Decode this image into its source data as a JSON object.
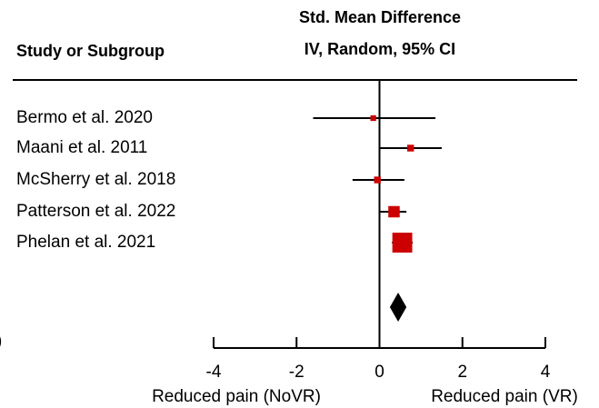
{
  "chart_data": {
    "type": "forest",
    "column_header": "Study or Subgroup",
    "title": "Std. Mean Difference",
    "subtitle": "IV, Random, 95% CI",
    "categories": [
      "Bermo et al. 2020",
      "Maani et al. 2011",
      "McSherry et al. 2018",
      "Patterson et al. 2022",
      "Phelan et al. 2021"
    ],
    "values": [
      -0.15,
      0.75,
      -0.05,
      0.35,
      0.55
    ],
    "lower": [
      -1.6,
      0,
      -0.65,
      0,
      0.3
    ],
    "upper": [
      1.35,
      1.5,
      0.6,
      0.65,
      0.8
    ],
    "weights": [
      5,
      7,
      7,
      20,
      61
    ],
    "color": "#cc0000",
    "pooled": {
      "value": 0.45,
      "lower": 0.25,
      "upper": 0.65,
      "color": "#000000"
    },
    "fragment": ")",
    "xlim": [
      -4,
      4
    ],
    "xticks": [
      -4,
      -2,
      0,
      2,
      4
    ],
    "xlabel_left": "Reduced pain (NoVR)",
    "xlabel_right": "Reduced pain (VR)"
  }
}
